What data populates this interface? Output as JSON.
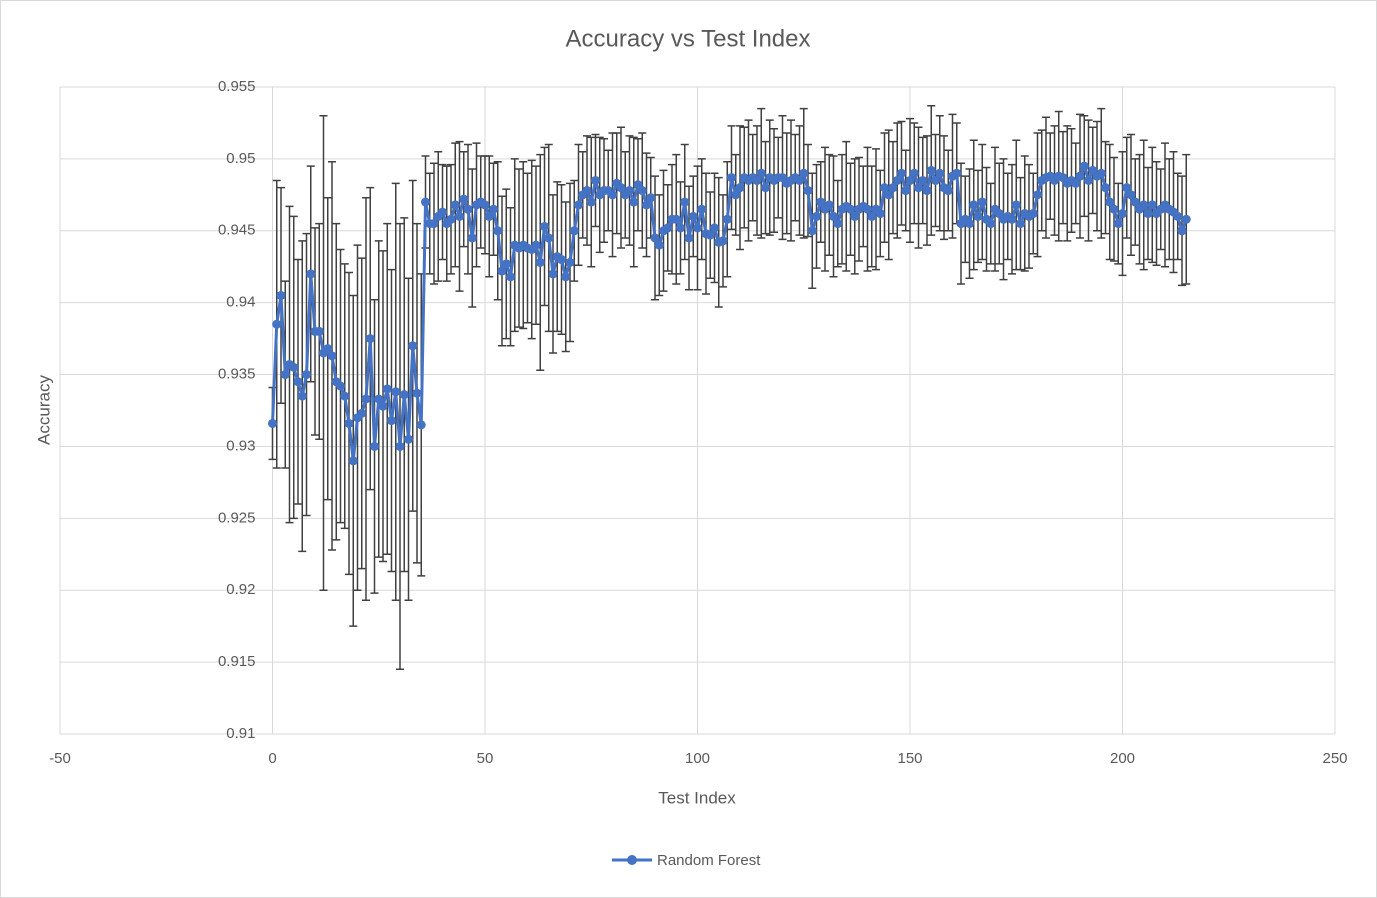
{
  "chart_data": {
    "type": "scatter",
    "title": "Accuracy vs Test Index",
    "x_label": "Test Index",
    "y_label": "Accuracy",
    "xlim": [
      -50,
      250
    ],
    "xticks": [
      -50,
      0,
      50,
      100,
      150,
      200,
      250
    ],
    "ylim": [
      0.91,
      0.955
    ],
    "yticks": [
      0.91,
      0.915,
      0.92,
      0.925,
      0.93,
      0.935,
      0.94,
      0.945,
      0.95,
      0.955
    ],
    "grid": true,
    "legend": "bottom",
    "series": [
      {
        "name": "Random Forest",
        "color": "#4472c4",
        "error_color": "#404040",
        "x": [
          0,
          1,
          2,
          3,
          4,
          5,
          6,
          7,
          8,
          9,
          10,
          11,
          12,
          13,
          14,
          15,
          16,
          17,
          18,
          19,
          20,
          21,
          22,
          23,
          24,
          25,
          26,
          27,
          28,
          29,
          30,
          31,
          32,
          33,
          34,
          35,
          36,
          37,
          38,
          39,
          40,
          41,
          42,
          43,
          44,
          45,
          46,
          47,
          48,
          49,
          50,
          51,
          52,
          53,
          54,
          55,
          56,
          57,
          58,
          59,
          60,
          61,
          62,
          63,
          64,
          65,
          66,
          67,
          68,
          69,
          70,
          71,
          72,
          73,
          74,
          75,
          76,
          77,
          78,
          79,
          80,
          81,
          82,
          83,
          84,
          85,
          86,
          87,
          88,
          89,
          90,
          91,
          92,
          93,
          94,
          95,
          96,
          97,
          98,
          99,
          100,
          101,
          102,
          103,
          104,
          105,
          106,
          107,
          108,
          109,
          110,
          111,
          112,
          113,
          114,
          115,
          116,
          117,
          118,
          119,
          120,
          121,
          122,
          123,
          124,
          125,
          126,
          127,
          128,
          129,
          130,
          131,
          132,
          133,
          134,
          135,
          136,
          137,
          138,
          139,
          140,
          141,
          142,
          143,
          144,
          145,
          146,
          147,
          148,
          149,
          150,
          151,
          152,
          153,
          154,
          155,
          156,
          157,
          158,
          159,
          160,
          161,
          162,
          163,
          164,
          165,
          166,
          167,
          168,
          169,
          170,
          171,
          172,
          173,
          174,
          175,
          176,
          177,
          178,
          179,
          180,
          181,
          182,
          183,
          184,
          185,
          186,
          187,
          188,
          189,
          190,
          191,
          192,
          193,
          194,
          195,
          196,
          197,
          198,
          199,
          200,
          201,
          202,
          203,
          204,
          205,
          206,
          207,
          208,
          209,
          210,
          211,
          212,
          213,
          214,
          215
        ],
        "values": [
          0.9316,
          0.9385,
          0.9405,
          0.935,
          0.9357,
          0.9355,
          0.9345,
          0.9335,
          0.935,
          0.942,
          0.938,
          0.938,
          0.9365,
          0.9368,
          0.9363,
          0.9345,
          0.9342,
          0.9335,
          0.9316,
          0.929,
          0.932,
          0.9323,
          0.9333,
          0.9375,
          0.93,
          0.9333,
          0.9328,
          0.934,
          0.9318,
          0.9338,
          0.93,
          0.9336,
          0.9305,
          0.937,
          0.9337,
          0.9315,
          0.947,
          0.9455,
          0.9455,
          0.946,
          0.9463,
          0.9455,
          0.9458,
          0.9468,
          0.946,
          0.9472,
          0.9465,
          0.9445,
          0.9468,
          0.947,
          0.9468,
          0.946,
          0.9465,
          0.945,
          0.9422,
          0.9427,
          0.9418,
          0.944,
          0.9438,
          0.944,
          0.9438,
          0.9437,
          0.944,
          0.9428,
          0.9453,
          0.9445,
          0.942,
          0.9432,
          0.943,
          0.9418,
          0.9428,
          0.945,
          0.9468,
          0.9475,
          0.9478,
          0.947,
          0.9485,
          0.9475,
          0.9478,
          0.9478,
          0.9475,
          0.9483,
          0.948,
          0.9475,
          0.9478,
          0.947,
          0.9482,
          0.9478,
          0.9468,
          0.9473,
          0.9445,
          0.944,
          0.945,
          0.9452,
          0.9458,
          0.9458,
          0.9452,
          0.947,
          0.9445,
          0.946,
          0.9452,
          0.9465,
          0.9448,
          0.9447,
          0.9452,
          0.9442,
          0.9443,
          0.9458,
          0.9487,
          0.9475,
          0.948,
          0.9487,
          0.9485,
          0.9487,
          0.9485,
          0.949,
          0.948,
          0.9487,
          0.9485,
          0.9487,
          0.9487,
          0.9483,
          0.9485,
          0.9487,
          0.9485,
          0.949,
          0.9478,
          0.945,
          0.946,
          0.947,
          0.9465,
          0.9468,
          0.946,
          0.9455,
          0.9465,
          0.9467,
          0.9465,
          0.946,
          0.9465,
          0.9467,
          0.9465,
          0.946,
          0.9465,
          0.9462,
          0.948,
          0.9475,
          0.948,
          0.9485,
          0.949,
          0.9478,
          0.9485,
          0.949,
          0.948,
          0.9485,
          0.9478,
          0.9492,
          0.9485,
          0.949,
          0.948,
          0.9478,
          0.9488,
          0.949,
          0.9455,
          0.9458,
          0.9455,
          0.9468,
          0.946,
          0.947,
          0.9458,
          0.9455,
          0.9465,
          0.9462,
          0.9458,
          0.946,
          0.9458,
          0.9468,
          0.9455,
          0.9462,
          0.946,
          0.9462,
          0.9475,
          0.9485,
          0.9487,
          0.9488,
          0.9485,
          0.9488,
          0.9487,
          0.9483,
          0.9485,
          0.9483,
          0.9488,
          0.9495,
          0.9485,
          0.9492,
          0.9488,
          0.949,
          0.948,
          0.947,
          0.9465,
          0.9455,
          0.9462,
          0.948,
          0.9475,
          0.947,
          0.9465,
          0.9468,
          0.9462,
          0.9468,
          0.9462,
          0.9465,
          0.9468,
          0.9465,
          0.9463,
          0.946,
          0.945,
          0.9458
        ],
        "errors": [
          0.0025,
          0.01,
          0.0075,
          0.0065,
          0.011,
          0.0105,
          0.0085,
          0.0108,
          0.0098,
          0.0075,
          0.0072,
          0.0075,
          0.0165,
          0.0105,
          0.0135,
          0.011,
          0.0095,
          0.0092,
          0.0105,
          0.0115,
          0.012,
          0.0108,
          0.014,
          0.0105,
          0.0102,
          0.011,
          0.0108,
          0.0115,
          0.0105,
          0.0145,
          0.0155,
          0.0123,
          0.0112,
          0.0115,
          0.0118,
          0.0105,
          0.0032,
          0.0035,
          0.0042,
          0.0045,
          0.0033,
          0.004,
          0.0038,
          0.0043,
          0.0052,
          0.0033,
          0.0045,
          0.0048,
          0.0043,
          0.0032,
          0.0034,
          0.0042,
          0.0032,
          0.0048,
          0.0052,
          0.0052,
          0.0048,
          0.006,
          0.0055,
          0.0058,
          0.0052,
          0.0062,
          0.0055,
          0.0075,
          0.0055,
          0.0065,
          0.0055,
          0.0052,
          0.0052,
          0.0052,
          0.0055,
          0.0035,
          0.0042,
          0.003,
          0.0038,
          0.0045,
          0.0032,
          0.004,
          0.0036,
          0.0028,
          0.0043,
          0.0035,
          0.0042,
          0.003,
          0.0038,
          0.0045,
          0.0032,
          0.004,
          0.0036,
          0.0028,
          0.0043,
          0.0035,
          0.0042,
          0.003,
          0.0038,
          0.0045,
          0.0032,
          0.004,
          0.0036,
          0.0028,
          0.0043,
          0.0035,
          0.0042,
          0.003,
          0.0038,
          0.0045,
          0.0032,
          0.004,
          0.0036,
          0.0028,
          0.0043,
          0.0035,
          0.0042,
          0.003,
          0.0038,
          0.0045,
          0.0032,
          0.004,
          0.0036,
          0.0028,
          0.0043,
          0.0035,
          0.0042,
          0.003,
          0.0038,
          0.0045,
          0.0032,
          0.004,
          0.0036,
          0.0028,
          0.0043,
          0.0035,
          0.0042,
          0.003,
          0.0038,
          0.0045,
          0.0032,
          0.004,
          0.0036,
          0.0028,
          0.0043,
          0.0035,
          0.0042,
          0.003,
          0.0038,
          0.0045,
          0.0032,
          0.004,
          0.0036,
          0.0028,
          0.0043,
          0.0035,
          0.0042,
          0.003,
          0.0038,
          0.0045,
          0.0032,
          0.004,
          0.0036,
          0.0028,
          0.0043,
          0.0035,
          0.0042,
          0.003,
          0.0038,
          0.0045,
          0.0032,
          0.004,
          0.0036,
          0.0028,
          0.0043,
          0.0035,
          0.0042,
          0.003,
          0.0038,
          0.0045,
          0.0032,
          0.004,
          0.0036,
          0.0028,
          0.0043,
          0.0035,
          0.0042,
          0.003,
          0.0038,
          0.0045,
          0.0032,
          0.004,
          0.0036,
          0.0028,
          0.0043,
          0.0035,
          0.0042,
          0.003,
          0.0038,
          0.0045,
          0.0032,
          0.004,
          0.0036,
          0.0028,
          0.0043,
          0.0035,
          0.0042,
          0.003,
          0.0038,
          0.0045,
          0.0032,
          0.004,
          0.0036,
          0.0028,
          0.0043,
          0.0035,
          0.0042,
          0.003,
          0.0038,
          0.0045
        ]
      }
    ]
  }
}
